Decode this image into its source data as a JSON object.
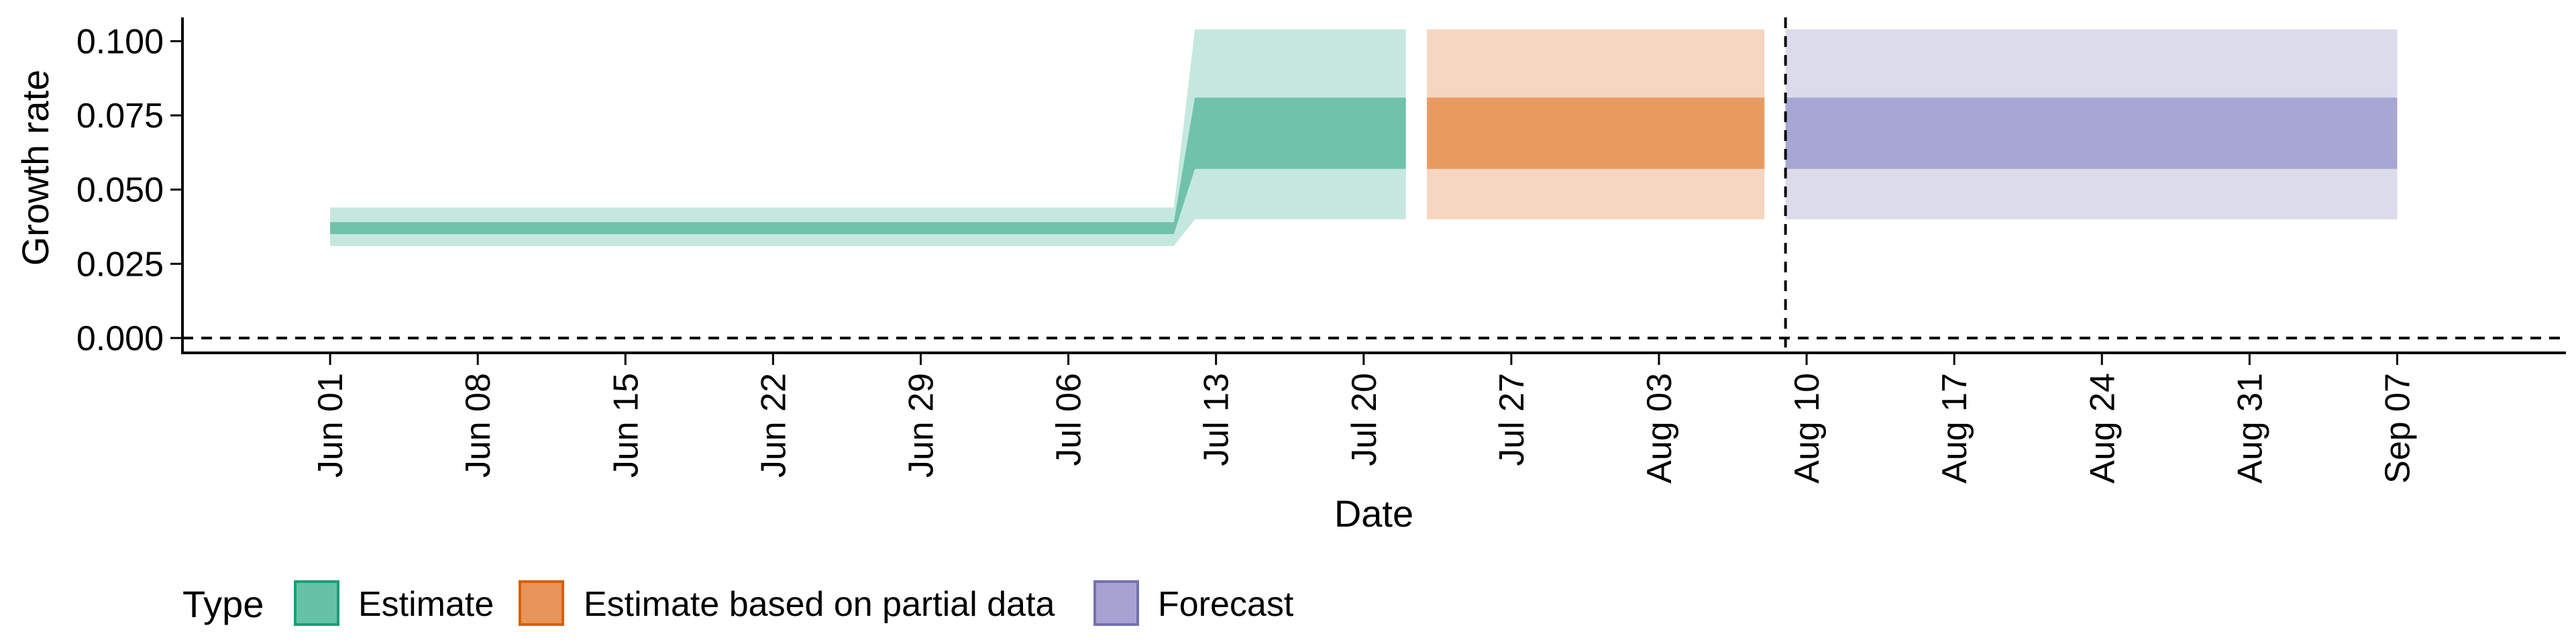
{
  "chart_data": {
    "type": "area",
    "title": "",
    "xlabel": "Date",
    "ylabel": "Growth rate",
    "x_type": "date",
    "xlim": [
      "2021-05-25",
      "2021-09-15"
    ],
    "ylim": [
      -0.005,
      0.108
    ],
    "x_ticks": [
      {
        "date": "2021-06-01",
        "label": "Jun 01"
      },
      {
        "date": "2021-06-08",
        "label": "Jun 08"
      },
      {
        "date": "2021-06-15",
        "label": "Jun 15"
      },
      {
        "date": "2021-06-22",
        "label": "Jun 22"
      },
      {
        "date": "2021-06-29",
        "label": "Jun 29"
      },
      {
        "date": "2021-07-06",
        "label": "Jul 06"
      },
      {
        "date": "2021-07-13",
        "label": "Jul 13"
      },
      {
        "date": "2021-07-20",
        "label": "Jul 20"
      },
      {
        "date": "2021-07-27",
        "label": "Jul 27"
      },
      {
        "date": "2021-08-03",
        "label": "Aug 03"
      },
      {
        "date": "2021-08-10",
        "label": "Aug 10"
      },
      {
        "date": "2021-08-17",
        "label": "Aug 17"
      },
      {
        "date": "2021-08-24",
        "label": "Aug 24"
      },
      {
        "date": "2021-08-31",
        "label": "Aug 31"
      },
      {
        "date": "2021-09-07",
        "label": "Sep 07"
      }
    ],
    "y_ticks": [
      {
        "value": 0.0,
        "label": "0.000"
      },
      {
        "value": 0.025,
        "label": "0.025"
      },
      {
        "value": 0.05,
        "label": "0.050"
      },
      {
        "value": 0.075,
        "label": "0.075"
      },
      {
        "value": 0.1,
        "label": "0.100"
      }
    ],
    "reference_lines": [
      {
        "axis": "y",
        "value": 0,
        "style": "dashed"
      },
      {
        "axis": "x",
        "value": "2021-08-09",
        "style": "dashed"
      }
    ],
    "legend": {
      "title": "Type",
      "position": "bottom",
      "entries": [
        {
          "label": "Estimate",
          "fill": "#66c2a5",
          "stroke": "#1b9e77"
        },
        {
          "label": "Estimate based on partial data",
          "fill": "#e8955a",
          "stroke": "#d95f02"
        },
        {
          "label": "Forecast",
          "fill": "#a6a3d2",
          "stroke": "#7570b3"
        }
      ]
    },
    "series": [
      {
        "name": "Estimate",
        "colors": {
          "outer": "#c5e8de",
          "inner": "#70c2a8"
        },
        "points": [
          {
            "x": "2021-06-01",
            "lower_90": 0.031,
            "lower_50": 0.035,
            "upper_50": 0.039,
            "upper_90": 0.044
          },
          {
            "x": "2021-07-11",
            "lower_90": 0.031,
            "lower_50": 0.035,
            "upper_50": 0.039,
            "upper_90": 0.044
          },
          {
            "x": "2021-07-12",
            "lower_90": 0.04,
            "lower_50": 0.057,
            "upper_50": 0.081,
            "upper_90": 0.104
          },
          {
            "x": "2021-07-22",
            "lower_90": 0.04,
            "lower_50": 0.057,
            "upper_50": 0.081,
            "upper_90": 0.104
          }
        ]
      },
      {
        "name": "Estimate based on partial data",
        "colors": {
          "outer": "#f6d6be",
          "inner": "#e89a5f"
        },
        "points": [
          {
            "x": "2021-07-23",
            "lower_90": 0.04,
            "lower_50": 0.057,
            "upper_50": 0.081,
            "upper_90": 0.104
          },
          {
            "x": "2021-08-08",
            "lower_90": 0.04,
            "lower_50": 0.057,
            "upper_50": 0.081,
            "upper_90": 0.104
          }
        ]
      },
      {
        "name": "Forecast",
        "colors": {
          "outer": "#dcdbec",
          "inner": "#a8a6d2"
        },
        "points": [
          {
            "x": "2021-08-09",
            "lower_90": 0.04,
            "lower_50": 0.057,
            "upper_50": 0.081,
            "upper_90": 0.104
          },
          {
            "x": "2021-09-07",
            "lower_90": 0.04,
            "lower_50": 0.057,
            "upper_50": 0.081,
            "upper_90": 0.104
          }
        ]
      }
    ]
  }
}
